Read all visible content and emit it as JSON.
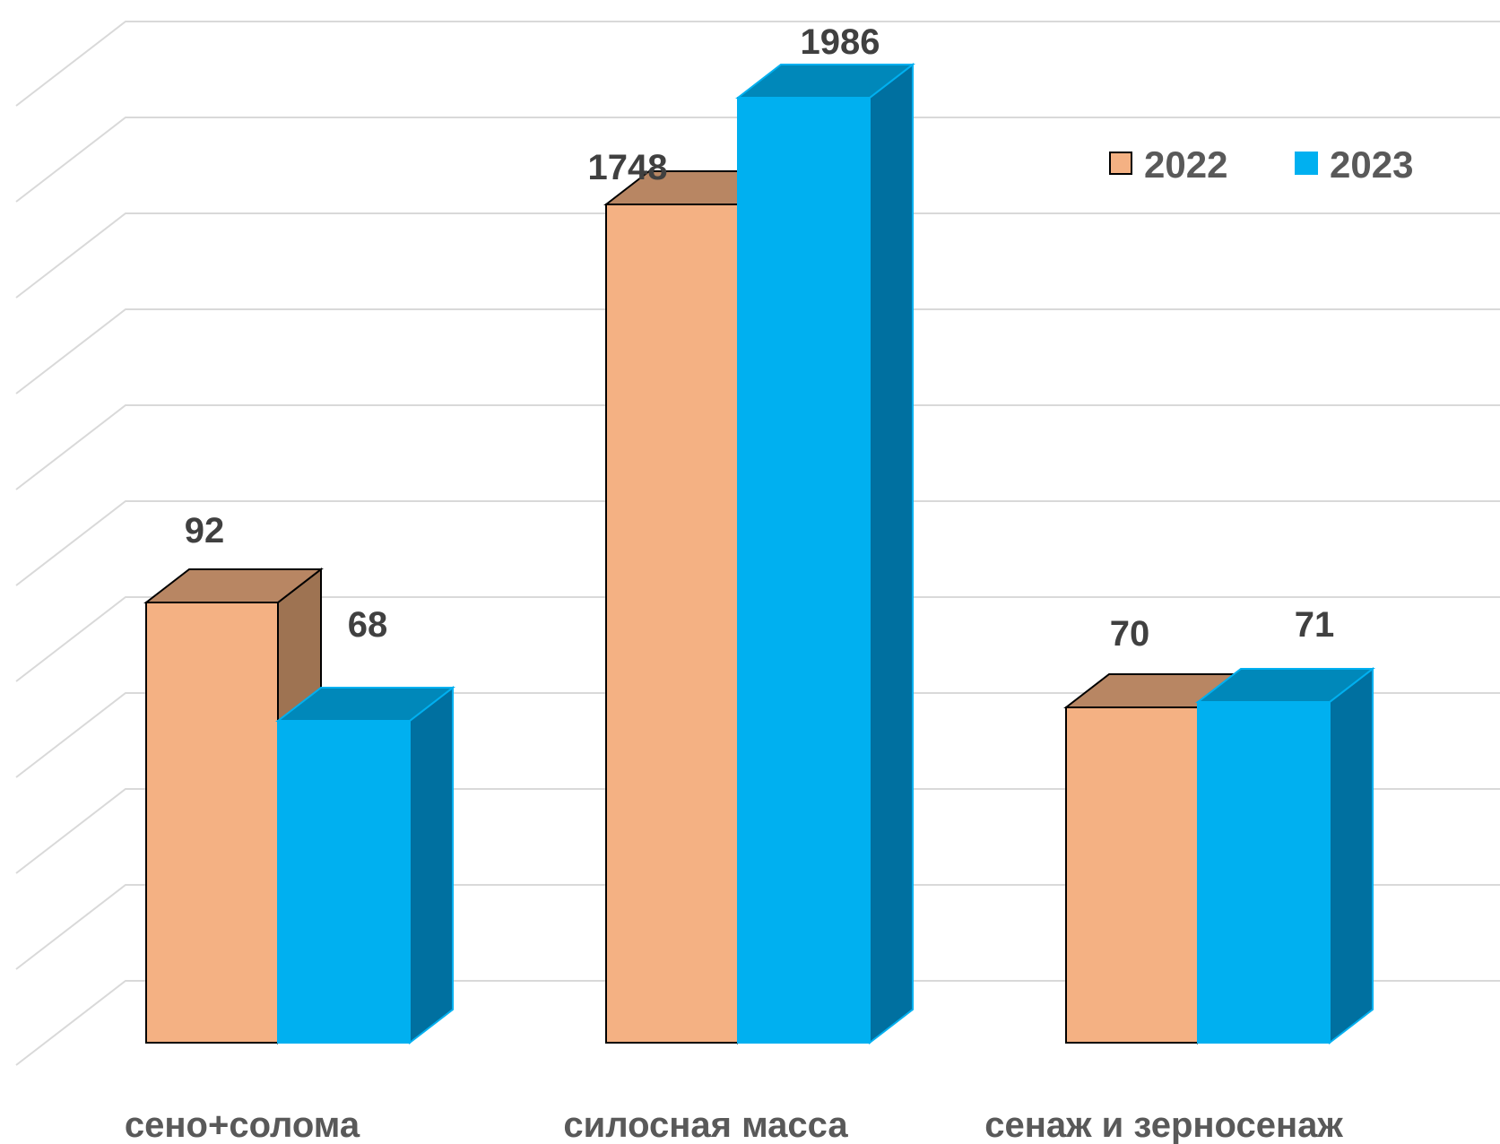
{
  "chart_data": {
    "type": "bar",
    "style": "3d-clustered-column",
    "categories": [
      "сено+солома",
      "силосная масса",
      "сенаж и зерносенаж"
    ],
    "series": [
      {
        "name": "2022",
        "values": [
          92,
          1748,
          70
        ],
        "labels": [
          "92",
          "1748",
          "70"
        ],
        "color": "#F4B183",
        "top_color": "#B88663",
        "side_color": "#9E7352"
      },
      {
        "name": "2023",
        "values": [
          68,
          1986,
          71
        ],
        "labels": [
          "68",
          "1986",
          "71"
        ],
        "color": "#00B0F0",
        "top_color": "#0088BA",
        "side_color": "#0070A0"
      }
    ],
    "grid": true,
    "legend_position": "top-right",
    "scale_note": "visual bar heights are not proportional to labeled values"
  }
}
